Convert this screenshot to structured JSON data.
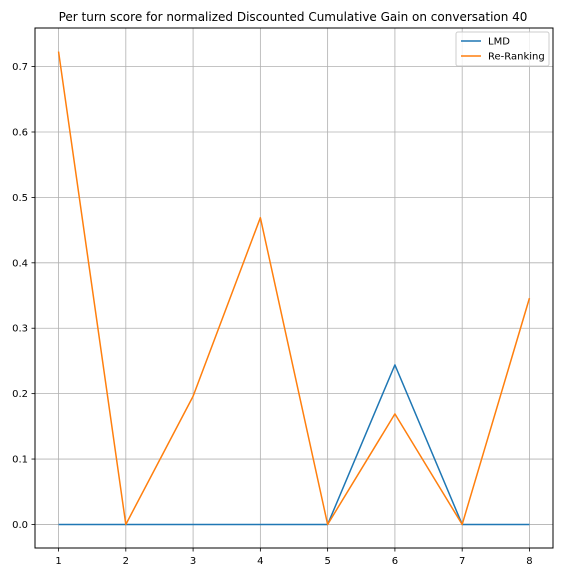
{
  "chart_data": {
    "type": "line",
    "title": "Per turn score for normalized Discounted Cumulative Gain on conversation 40",
    "xlabel": "",
    "ylabel": "",
    "x": [
      1,
      2,
      3,
      4,
      5,
      6,
      7,
      8
    ],
    "x_ticks": [
      "1",
      "2",
      "3",
      "4",
      "5",
      "6",
      "7",
      "8"
    ],
    "y_ticks": [
      "0.0",
      "0.1",
      "0.2",
      "0.3",
      "0.4",
      "0.5",
      "0.6",
      "0.7"
    ],
    "xlim": [
      0.65,
      8.35
    ],
    "ylim": [
      -0.036,
      0.759
    ],
    "grid": true,
    "legend_position": "top-right",
    "series": [
      {
        "name": "LMD",
        "color": "#1f77b4",
        "values": [
          0.0,
          0.0,
          0.0,
          0.0,
          0.0,
          0.244,
          0.0,
          0.0
        ]
      },
      {
        "name": "Re-Ranking",
        "color": "#ff7f0e",
        "values": [
          0.723,
          0.0,
          0.196,
          0.469,
          0.0,
          0.169,
          0.0,
          0.346
        ]
      }
    ]
  }
}
